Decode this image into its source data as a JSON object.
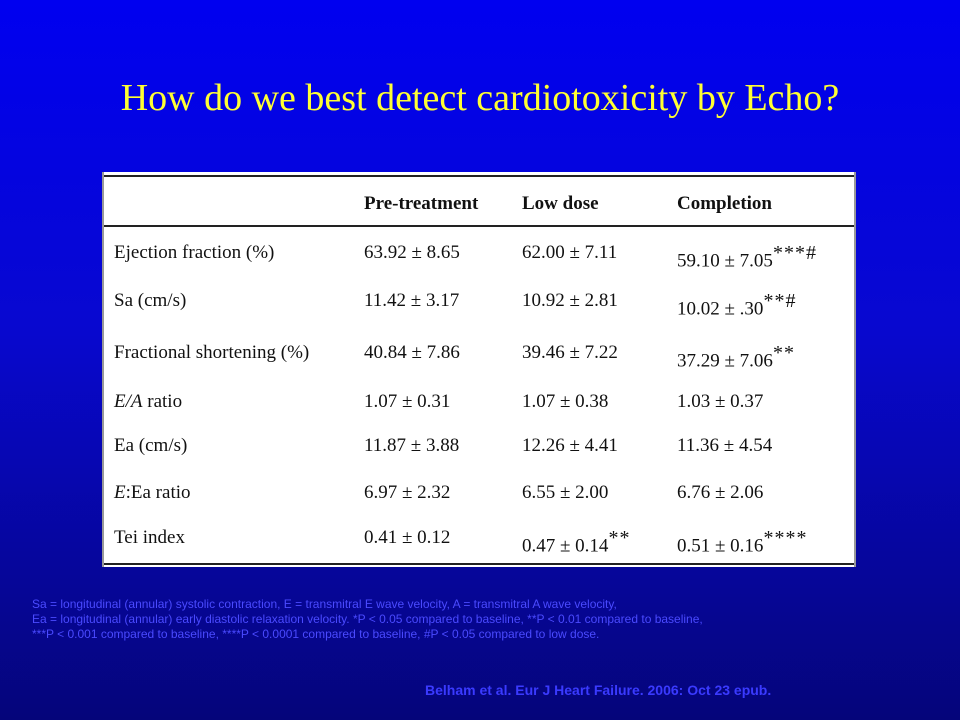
{
  "title": "How do we best detect cardiotoxicity by Echo?",
  "table": {
    "headers": [
      "",
      "Pre-treatment",
      "Low dose",
      "Completion"
    ],
    "rows": [
      {
        "label": "Ejection fraction (%)",
        "pre": "63.92 ± 8.65",
        "low": "62.00 ± 7.11",
        "low_sig": "",
        "comp": "59.10 ± 7.05",
        "comp_sig": "***#"
      },
      {
        "label": "Sa (cm/s)",
        "pre": "11.42 ± 3.17",
        "low": "10.92 ± 2.81",
        "low_sig": "",
        "comp": "10.02 ± .30",
        "comp_sig": "**#"
      },
      {
        "label": "Fractional shortening (%)",
        "pre": "40.84 ± 7.86",
        "low": "39.46 ± 7.22",
        "low_sig": "",
        "comp": "37.29 ± 7.06",
        "comp_sig": "**"
      },
      {
        "label_italic": "E/A",
        "label_rest": " ratio",
        "pre": "1.07 ± 0.31",
        "low": "1.07 ± 0.38",
        "low_sig": "",
        "comp": "1.03 ± 0.37",
        "comp_sig": ""
      },
      {
        "label": "Ea (cm/s)",
        "pre": "11.87 ± 3.88",
        "low": "12.26 ± 4.41",
        "low_sig": "",
        "comp": "11.36 ± 4.54",
        "comp_sig": ""
      },
      {
        "label_italic": "E",
        "label_rest": ":Ea ratio",
        "pre": "6.97 ± 2.32",
        "low": "6.55 ± 2.00",
        "low_sig": "",
        "comp": "6.76 ± 2.06",
        "comp_sig": ""
      },
      {
        "label": "Tei index",
        "pre": "0.41 ± 0.12",
        "low": "0.47 ± 0.14",
        "low_sig": "**",
        "comp": "0.51 ± 0.16",
        "comp_sig": "****"
      }
    ]
  },
  "footnote": [
    "Sa = longitudinal (annular) systolic contraction, E = transmitral E wave velocity, A = transmitral A wave velocity,",
    "Ea = longitudinal (annular) early diastolic relaxation velocity. *P < 0.05 compared to baseline, **P < 0.01 compared to baseline,",
    "***P < 0.001 compared to baseline, ****P < 0.0001 compared to baseline, #P < 0.05 compared to low dose."
  ],
  "citation": "Belham et al. Eur J Heart Failure. 2006: Oct 23 epub."
}
